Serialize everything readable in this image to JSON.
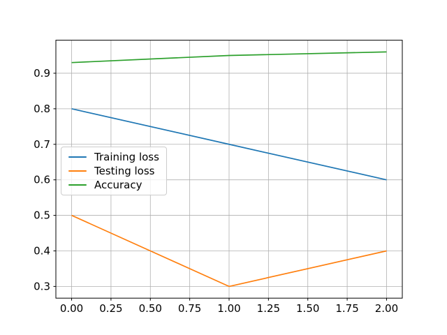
{
  "chart_data": {
    "type": "line",
    "title": "",
    "xlabel": "",
    "ylabel": "",
    "x": [
      0,
      1,
      2
    ],
    "series": [
      {
        "name": "Training loss",
        "values": [
          0.8,
          0.7,
          0.6
        ],
        "color": "#1f77b4"
      },
      {
        "name": "Testing loss",
        "values": [
          0.5,
          0.3,
          0.4
        ],
        "color": "#ff7f0e"
      },
      {
        "name": "Accuracy",
        "values": [
          0.93,
          0.95,
          0.96
        ],
        "color": "#2ca02c"
      }
    ],
    "xlim": [
      -0.1,
      2.1
    ],
    "ylim": [
      0.267,
      0.993
    ],
    "x_ticks": {
      "values": [
        0,
        0.25,
        0.5,
        0.75,
        1.0,
        1.25,
        1.5,
        1.75,
        2.0
      ],
      "labels": [
        "0.00",
        "0.25",
        "0.50",
        "0.75",
        "1.00",
        "1.25",
        "1.50",
        "1.75",
        "2.00"
      ]
    },
    "y_ticks": {
      "values": [
        0.3,
        0.4,
        0.5,
        0.6,
        0.7,
        0.8,
        0.9
      ],
      "labels": [
        "0.3",
        "0.4",
        "0.5",
        "0.6",
        "0.7",
        "0.8",
        "0.9"
      ]
    },
    "grid": true,
    "legend": {
      "position": "center-left",
      "entries": [
        "Training loss",
        "Testing loss",
        "Accuracy"
      ]
    }
  },
  "colors": {
    "background": "#ffffff",
    "grid": "#b0b0b0",
    "axis": "#000000",
    "tick_label": "#000000",
    "legend_border": "#cccccc",
    "legend_background": "rgba(255,255,255,0.8)"
  }
}
